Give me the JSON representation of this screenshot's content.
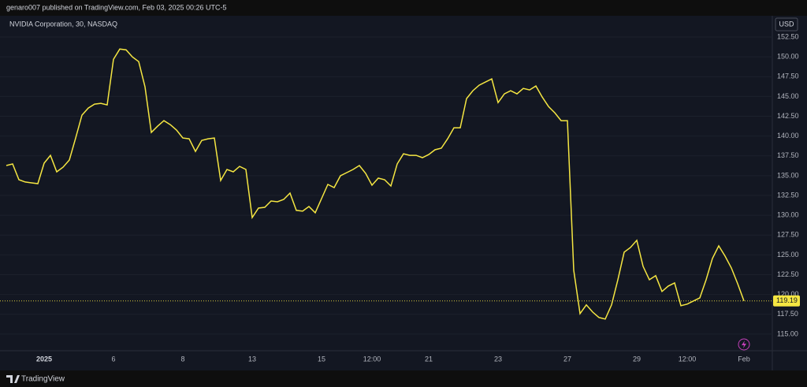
{
  "header": {
    "published": "genaro007 published on TradingView.com, Feb 03, 2025 00:26 UTC-5"
  },
  "footer": {
    "brand": "TradingView"
  },
  "chart_data": {
    "type": "line",
    "title": "NVIDIA Corporation, 30, NASDAQ",
    "currency": "USD",
    "color": "#f5e642",
    "grid": true,
    "categories": [
      null,
      null,
      null,
      null,
      null,
      null,
      "2025",
      null,
      null,
      null,
      null,
      null,
      null,
      null,
      null,
      null,
      null,
      "6",
      null,
      null,
      null,
      null,
      null,
      null,
      null,
      null,
      null,
      null,
      "8",
      null,
      null,
      null,
      null,
      null,
      null,
      null,
      null,
      null,
      null,
      "13",
      null,
      null,
      null,
      null,
      null,
      null,
      null,
      null,
      null,
      null,
      "15",
      null,
      null,
      null,
      null,
      null,
      null,
      null,
      "12:00",
      null,
      null,
      null,
      null,
      null,
      null,
      null,
      null,
      "21",
      null,
      null,
      null,
      null,
      null,
      null,
      null,
      null,
      null,
      null,
      "23",
      null,
      null,
      null,
      null,
      null,
      null,
      null,
      null,
      null,
      null,
      "27",
      null,
      null,
      null,
      null,
      null,
      null,
      null,
      null,
      null,
      null,
      "29",
      null,
      null,
      null,
      null,
      null,
      null,
      null,
      "12:00",
      null,
      null,
      null,
      null,
      null,
      null,
      null,
      null,
      "Feb"
    ],
    "values": [
      136.28,
      136.48,
      134.49,
      134.2,
      134.1,
      134.0,
      136.58,
      137.57,
      135.49,
      136.08,
      136.98,
      139.76,
      142.64,
      143.54,
      144.04,
      144.14,
      143.94,
      149.7,
      150.99,
      150.89,
      150.0,
      149.4,
      146.22,
      140.46,
      141.25,
      141.95,
      141.45,
      140.76,
      139.76,
      139.66,
      138.07,
      139.46,
      139.66,
      139.76,
      134.39,
      135.79,
      135.49,
      136.18,
      135.79,
      129.72,
      130.91,
      131.01,
      131.81,
      131.71,
      132.01,
      132.8,
      130.62,
      130.52,
      131.11,
      130.32,
      132.11,
      133.9,
      133.5,
      134.99,
      135.39,
      135.79,
      136.28,
      135.29,
      133.8,
      134.69,
      134.49,
      133.7,
      136.48,
      137.77,
      137.57,
      137.57,
      137.28,
      137.67,
      138.27,
      138.47,
      139.66,
      141.05,
      141.05,
      144.73,
      145.73,
      146.42,
      146.82,
      147.22,
      144.23,
      145.33,
      145.73,
      145.33,
      146.02,
      145.83,
      146.32,
      144.93,
      143.74,
      142.94,
      141.95,
      141.95,
      123.06,
      117.59,
      118.69,
      117.79,
      117.1,
      116.9,
      118.69,
      121.87,
      125.35,
      125.94,
      126.84,
      123.56,
      121.87,
      122.37,
      120.38,
      121.07,
      121.47,
      118.59,
      118.79,
      119.19,
      119.58,
      121.87,
      124.55,
      126.14,
      124.85,
      123.36,
      121.37,
      119.19
    ],
    "ylim": [
      112.9,
      153.4
    ],
    "yticks": [
      {
        "value": 115,
        "label": "115.00"
      },
      {
        "value": 117.5,
        "label": "117.50"
      },
      {
        "value": 120,
        "label": "120.00"
      },
      {
        "value": 122.5,
        "label": "122.50"
      },
      {
        "value": 125,
        "label": "125.00"
      },
      {
        "value": 127.5,
        "label": "127.50"
      },
      {
        "value": 130,
        "label": "130.00"
      },
      {
        "value": 132.5,
        "label": "132.50"
      },
      {
        "value": 135,
        "label": "135.00"
      },
      {
        "value": 137.5,
        "label": "137.50"
      },
      {
        "value": 140,
        "label": "140.00"
      },
      {
        "value": 142.5,
        "label": "142.50"
      },
      {
        "value": 145,
        "label": "145.00"
      },
      {
        "value": 147.5,
        "label": "147.50"
      },
      {
        "value": 150,
        "label": "150.00"
      },
      {
        "value": 152.5,
        "label": "152.50"
      }
    ]
  }
}
